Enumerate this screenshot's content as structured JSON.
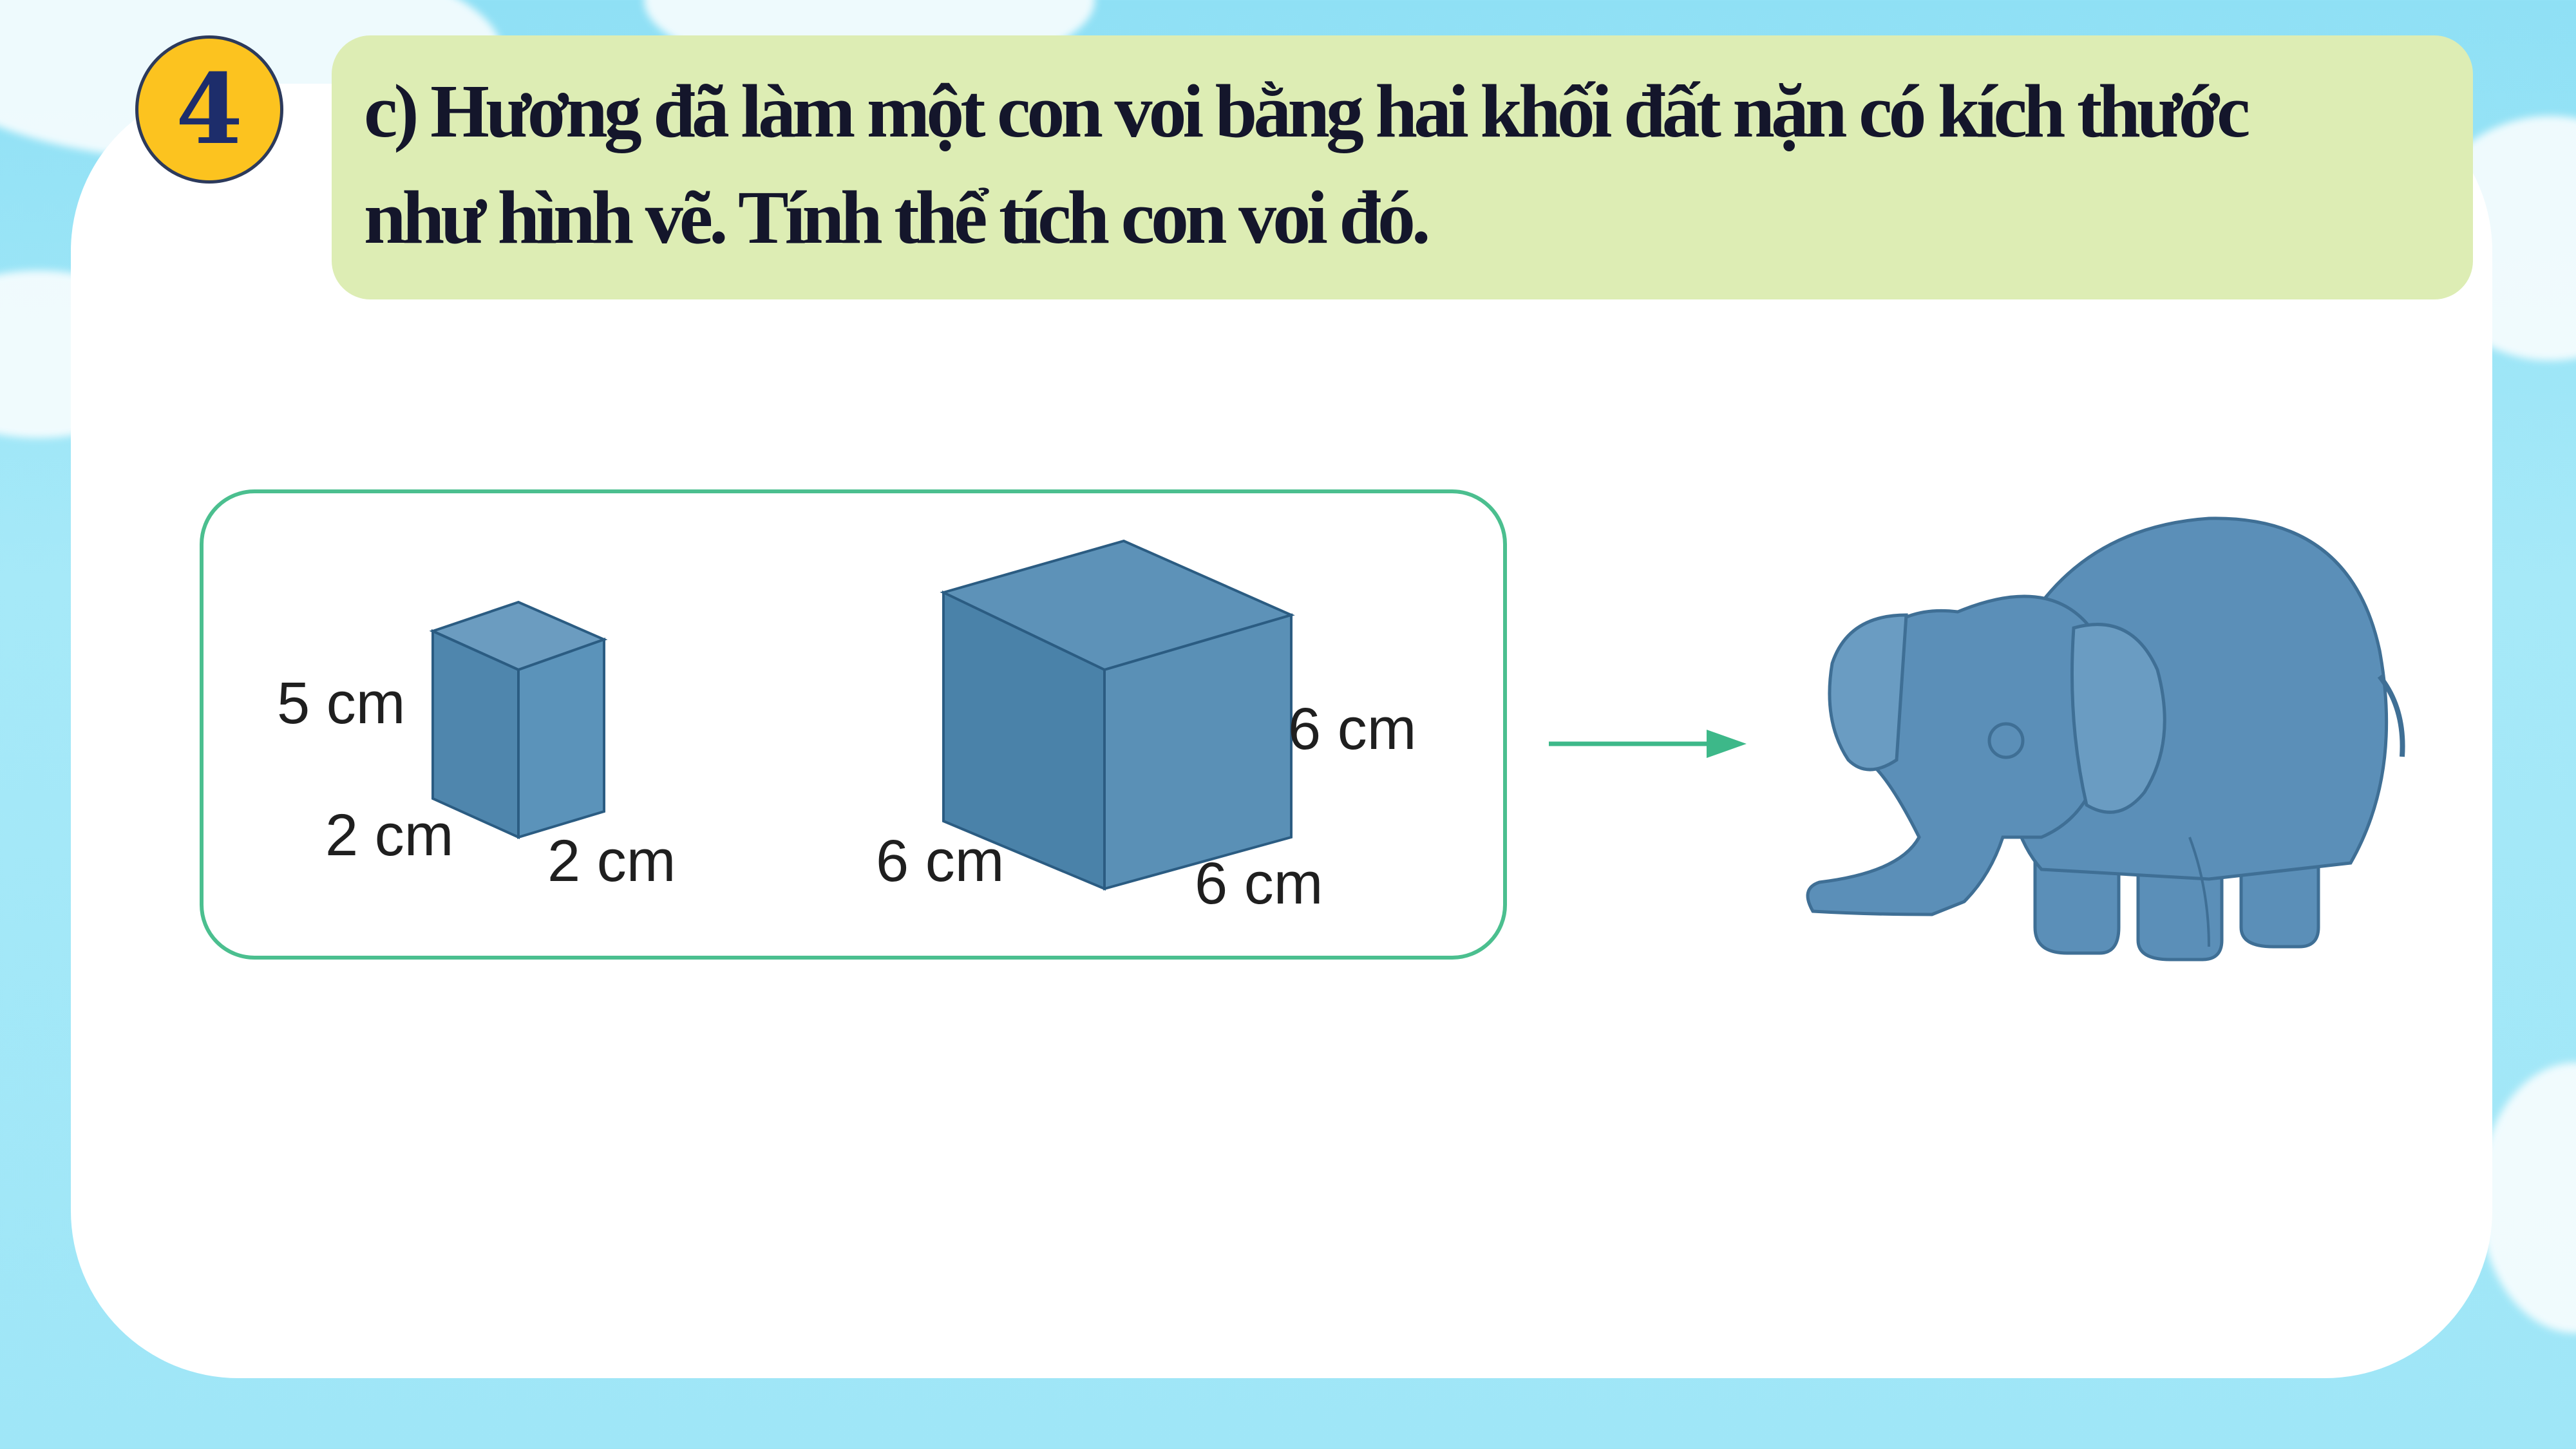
{
  "badge": {
    "number": "4",
    "color": "#fcc31f"
  },
  "question": {
    "line1": "c) Hương đã làm một con voi bằng hai khối đất nặn có kích thước",
    "line2": "như hình vẽ. Tính thể tích con voi đó.",
    "background": "#ddedb4"
  },
  "figure": {
    "small_block": {
      "height_label": "5 cm",
      "depth_label": "2 cm",
      "width_label": "2 cm"
    },
    "cube": {
      "right_label": "6 cm",
      "front_left_label": "6 cm",
      "front_right_label": "6 cm"
    },
    "arrow_color": "#3db889",
    "block_color": "#4d84ab",
    "elephant_icon": "elephant-icon"
  }
}
